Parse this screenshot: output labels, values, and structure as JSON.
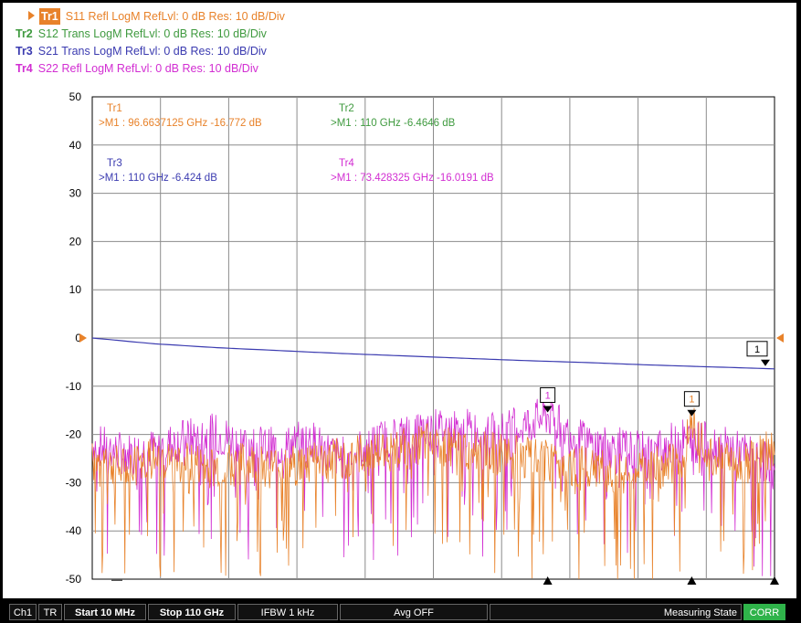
{
  "traces": [
    {
      "tag": "Tr1",
      "desc": "S11 Refl LogM RefLvl: 0  dB Res: 10  dB/Div",
      "color": "#e8822a",
      "active": true
    },
    {
      "tag": "Tr2",
      "desc": "S12 Trans LogM RefLvl: 0  dB Res: 10  dB/Div",
      "color": "#3f9a3f",
      "active": false
    },
    {
      "tag": "Tr3",
      "desc": "S21 Trans LogM RefLvl: 0  dB Res: 10  dB/Div",
      "color": "#3b3bb0",
      "active": false
    },
    {
      "tag": "Tr4",
      "desc": "S22 Refl LogM RefLvl: 0  dB Res: 10  dB/Div",
      "color": "#d22ed2",
      "active": false
    }
  ],
  "marker_readouts": [
    {
      "trace": "Tr1",
      "text": ">M1 :  96.6637125 GHz  -16.772  dB",
      "color": "#e8822a"
    },
    {
      "trace": "Tr2",
      "text": ">M1 :  110 GHz  -6.4646  dB",
      "color": "#3f9a3f"
    },
    {
      "trace": "Tr3",
      "text": ">M1 :  110 GHz  -6.424  dB",
      "color": "#3b3bb0"
    },
    {
      "trace": "Tr4",
      "text": ">M1 :  73.428325 GHz  -16.0191  dB",
      "color": "#d22ed2"
    }
  ],
  "markers": [
    {
      "label": "1",
      "freq_ghz": 73.43,
      "db": -16.0,
      "color": "#d22ed2",
      "label_color": "#d22ed2"
    },
    {
      "label": "1",
      "freq_ghz": 96.66,
      "db": -16.8,
      "color": "#e8822a",
      "label_color": "#e8822a"
    },
    {
      "label": "1",
      "freq_ghz": 110,
      "db": -6.4,
      "color": "#000000",
      "label_color": "#000000"
    }
  ],
  "chart_data": {
    "type": "line",
    "title": "",
    "xlabel": "",
    "ylabel": "",
    "xlim_ghz": [
      0.01,
      110
    ],
    "ylim": [
      -50,
      50
    ],
    "yticks": [
      50,
      40,
      30,
      20,
      10,
      0,
      -10,
      -20,
      -30,
      -40,
      -50
    ],
    "grid": true,
    "series": [
      {
        "name": "Tr3",
        "color": "#3b3bb0",
        "x": [
          0.01,
          10,
          20,
          30,
          40,
          50,
          60,
          70,
          80,
          90,
          100,
          110
        ],
        "values": [
          0,
          -1.2,
          -2.0,
          -2.6,
          -3.2,
          -3.7,
          -4.2,
          -4.7,
          -5.1,
          -5.6,
          -6.0,
          -6.4
        ]
      },
      {
        "name": "Tr4",
        "color": "#d22ed2",
        "x": [
          0.01,
          5,
          10,
          15,
          20,
          25,
          30,
          35,
          40,
          45,
          50,
          55,
          60,
          65,
          70,
          73.4,
          76,
          80,
          85,
          90,
          95,
          100,
          105,
          110
        ],
        "values": [
          -22,
          -24,
          -23,
          -21,
          -20,
          -22,
          -23,
          -21,
          -25,
          -22,
          -20,
          -19,
          -19,
          -20,
          -18,
          -16,
          -19,
          -22,
          -23,
          -24,
          -21,
          -22,
          -24,
          -26
        ]
      },
      {
        "name": "Tr1",
        "color": "#e8822a",
        "x": [
          0.01,
          5,
          10,
          15,
          20,
          25,
          30,
          35,
          40,
          45,
          50,
          55,
          60,
          65,
          70,
          75,
          80,
          85,
          90,
          95,
          96.7,
          100,
          105,
          110
        ],
        "values": [
          -26,
          -27,
          -25,
          -26,
          -27,
          -26,
          -27,
          -26,
          -25,
          -24,
          -23,
          -22,
          -23,
          -24,
          -25,
          -26,
          -27,
          -28,
          -27,
          -26,
          -17,
          -24,
          -26,
          -23
        ]
      }
    ]
  },
  "status": {
    "channel": "Ch1",
    "tr": "TR",
    "start": "Start 10 MHz",
    "stop": "Stop 110 GHz",
    "ifbw": "IFBW 1 kHz",
    "avg": "Avg OFF",
    "state": "Measuring State",
    "corr": "CORR"
  }
}
